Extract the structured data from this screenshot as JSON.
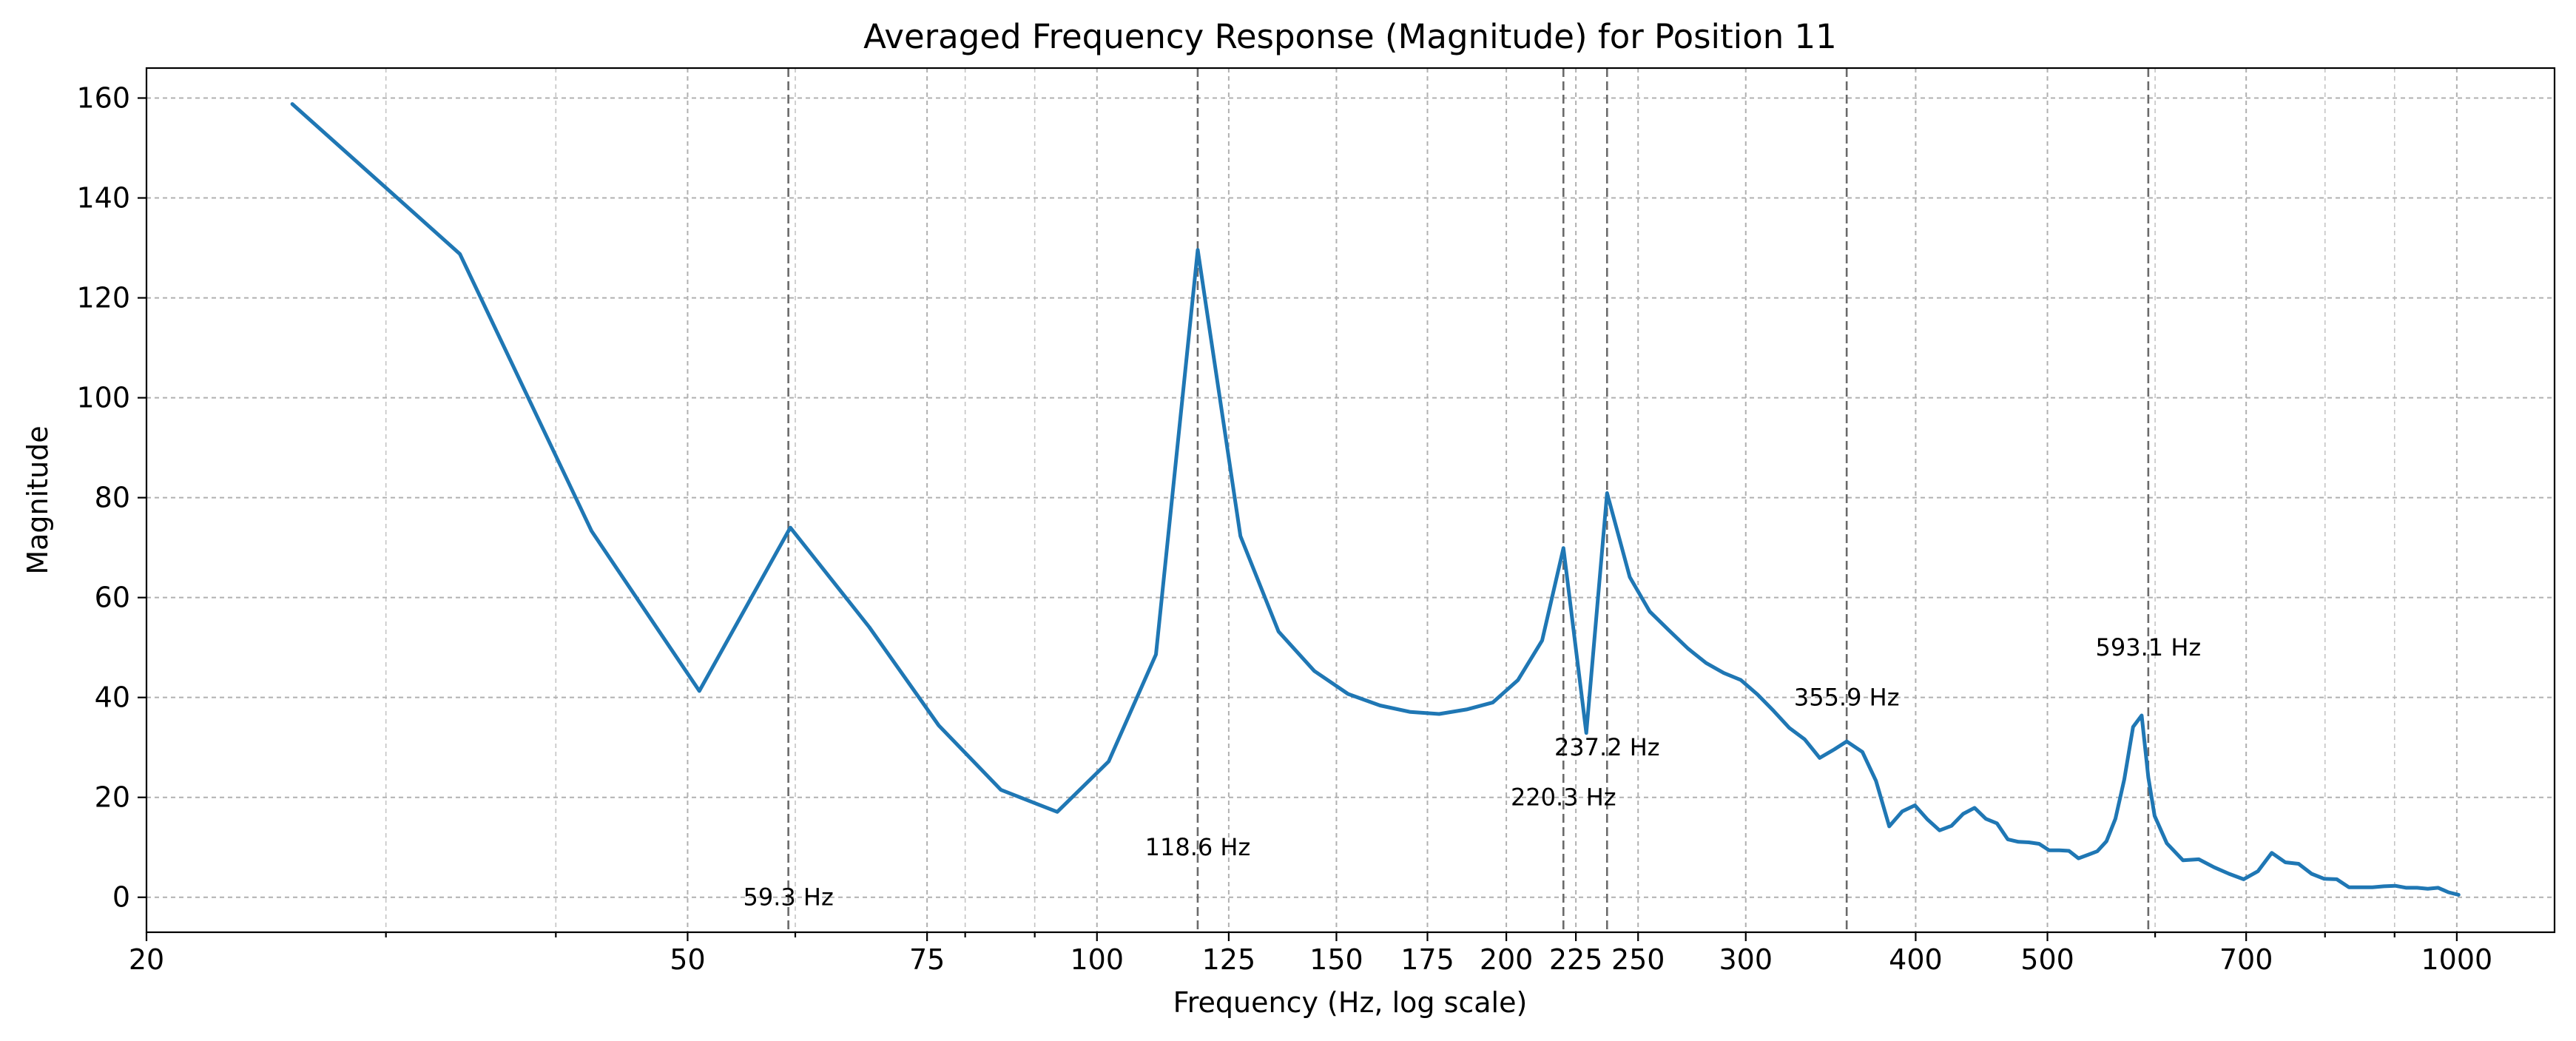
{
  "chart_data": {
    "type": "line",
    "title": "Averaged Frequency Response (Magnitude) for Position 11",
    "xlabel": "Frequency (Hz, log scale)",
    "ylabel": "Magnitude",
    "xscale": "log",
    "xlim": [
      20,
      1180
    ],
    "ylim": [
      -7,
      166
    ],
    "grid": true,
    "line_color": "#1f77b4",
    "peak_line_color": "#6a6a6a",
    "x_ticks": [
      20,
      50,
      75,
      100,
      125,
      150,
      175,
      200,
      225,
      250,
      300,
      400,
      500,
      700,
      1000
    ],
    "y_ticks": [
      0,
      20,
      40,
      60,
      80,
      100,
      120,
      140,
      160
    ],
    "series": [
      {
        "x": [
          25.6,
          34.0,
          42.5,
          51.0,
          59.5,
          68.0,
          76.5,
          85.0,
          93.5,
          102.0,
          110.5,
          118.6,
          127.5,
          136.0,
          144.5,
          153.0,
          161.5,
          170.0,
          178.5,
          187.0,
          195.5,
          204.0,
          212.5,
          220.3,
          229.0,
          237.2,
          246.5,
          255.0,
          263.5,
          272.0,
          280.5,
          289.0,
          297.5,
          306.0,
          314.5,
          323.0,
          331.5,
          340.0,
          348.5,
          355.9,
          365.5,
          374.0,
          382.5,
          391.0,
          399.5,
          408.0,
          416.5,
          425.0,
          433.5,
          442.0,
          450.5,
          459.0,
          467.5,
          476.0,
          484.5,
          493.0,
          501.5,
          510.0,
          518.5,
          527.0,
          535.5,
          544.0,
          552.5,
          561.0,
          569.5,
          578.0,
          586.5,
          593.1,
          599.5,
          612.0,
          629.0,
          646.0,
          663.0,
          680.0,
          697.0,
          714.0,
          731.0,
          748.0,
          765.0,
          782.0,
          799.0,
          816.0,
          833.0,
          850.0,
          867.0,
          884.0,
          901.0,
          918.0,
          935.0,
          952.0,
          969.0,
          986.0,
          1003.0
        ],
        "y": [
          158.8,
          128.8,
          73.3,
          41.3,
          74.0,
          54.1,
          34.4,
          21.5,
          17.1,
          27.2,
          48.6,
          129.6,
          72.3,
          53.2,
          45.3,
          40.7,
          38.4,
          37.1,
          36.7,
          37.6,
          39.0,
          43.5,
          51.4,
          69.9,
          32.9,
          80.9,
          64.1,
          57.2,
          53.4,
          49.8,
          46.9,
          44.9,
          43.5,
          40.6,
          37.3,
          33.9,
          31.6,
          27.9,
          29.6,
          31.2,
          29.1,
          23.3,
          14.2,
          17.2,
          18.4,
          15.6,
          13.4,
          14.3,
          16.7,
          17.9,
          15.7,
          14.8,
          11.6,
          11.1,
          11.0,
          10.7,
          9.4,
          9.4,
          9.3,
          7.8,
          8.5,
          9.2,
          11.2,
          15.7,
          23.6,
          34.1,
          36.4,
          24.0,
          16.3,
          10.8,
          7.4,
          7.6,
          6.0,
          4.7,
          3.6,
          5.2,
          8.9,
          7.0,
          6.7,
          4.7,
          3.7,
          3.6,
          2.0,
          2.0,
          2.0,
          2.2,
          2.3,
          1.9,
          1.9,
          1.7,
          1.9,
          1.0,
          0.5
        ]
      }
    ],
    "peaks": [
      {
        "freq": 59.3,
        "label": "59.3 Hz",
        "label_y": 0
      },
      {
        "freq": 118.6,
        "label": "118.6 Hz",
        "label_y": 10
      },
      {
        "freq": 220.3,
        "label": "220.3 Hz",
        "label_y": 20
      },
      {
        "freq": 237.2,
        "label": "237.2 Hz",
        "label_y": 30
      },
      {
        "freq": 355.9,
        "label": "355.9 Hz",
        "label_y": 40
      },
      {
        "freq": 593.1,
        "label": "593.1 Hz",
        "label_y": 50
      }
    ]
  }
}
